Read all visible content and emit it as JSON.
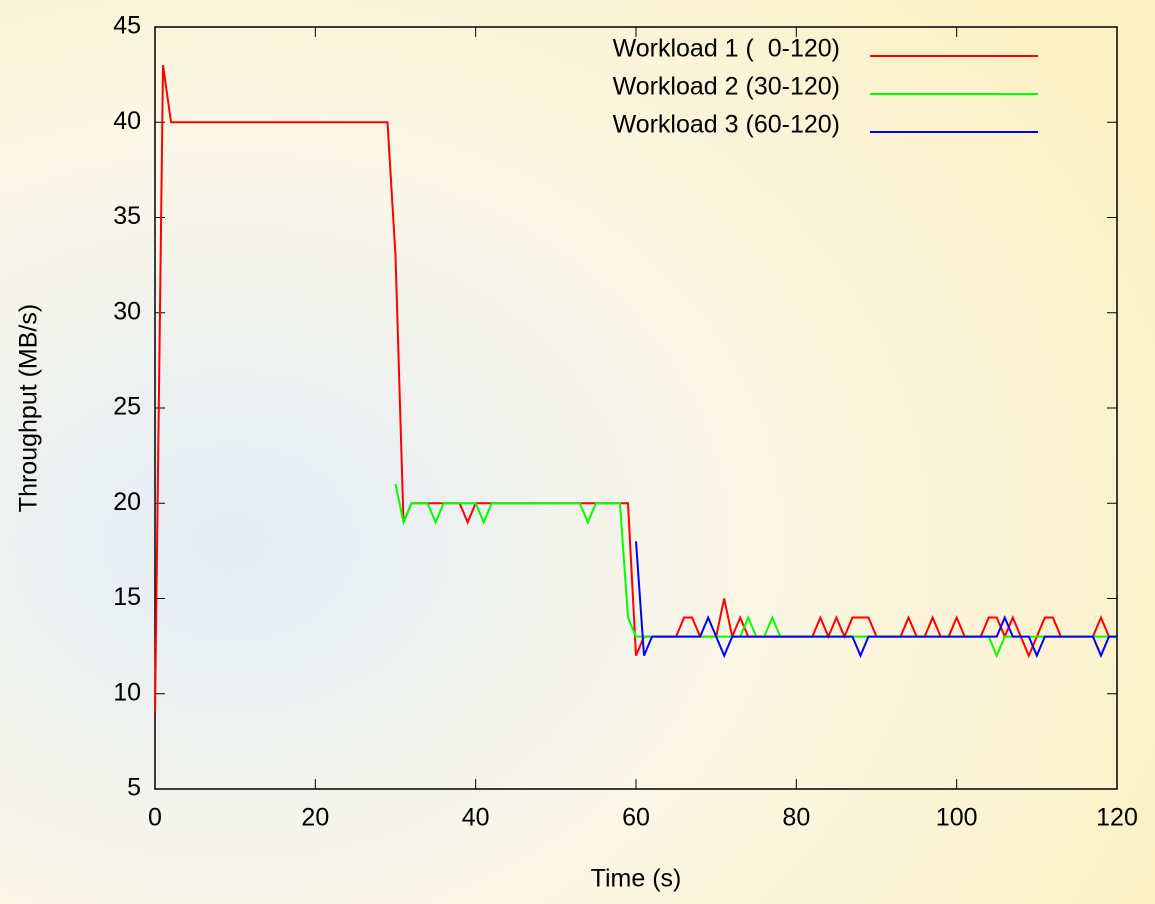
{
  "chart_data": {
    "type": "line",
    "xlabel": "Time (s)",
    "ylabel": "Throughput (MB/s)",
    "x": [
      0,
      1,
      2,
      3,
      4,
      5,
      6,
      7,
      8,
      9,
      10,
      11,
      12,
      13,
      14,
      15,
      16,
      17,
      18,
      19,
      20,
      21,
      22,
      23,
      24,
      25,
      26,
      27,
      28,
      29,
      30,
      31,
      32,
      33,
      34,
      35,
      36,
      37,
      38,
      39,
      40,
      41,
      42,
      43,
      44,
      45,
      46,
      47,
      48,
      49,
      50,
      51,
      52,
      53,
      54,
      55,
      56,
      57,
      58,
      59,
      60,
      61,
      62,
      63,
      64,
      65,
      66,
      67,
      68,
      69,
      70,
      71,
      72,
      73,
      74,
      75,
      76,
      77,
      78,
      79,
      80,
      81,
      82,
      83,
      84,
      85,
      86,
      87,
      88,
      89,
      90,
      91,
      92,
      93,
      94,
      95,
      96,
      97,
      98,
      99,
      100,
      101,
      102,
      103,
      104,
      105,
      106,
      107,
      108,
      109,
      110,
      111,
      112,
      113,
      114,
      115,
      116,
      117,
      118,
      119,
      120
    ],
    "series": [
      {
        "name": "Workload 1 (  0-120)",
        "color": "#ff0000",
        "values": [
          9,
          43,
          40,
          40,
          40,
          40,
          40,
          40,
          40,
          40,
          40,
          40,
          40,
          40,
          40,
          40,
          40,
          40,
          40,
          40,
          40,
          40,
          40,
          40,
          40,
          40,
          40,
          40,
          40,
          40,
          33,
          19,
          20,
          20,
          20,
          20,
          20,
          20,
          20,
          19,
          20,
          20,
          20,
          20,
          20,
          20,
          20,
          20,
          20,
          20,
          20,
          20,
          20,
          20,
          20,
          20,
          20,
          20,
          20,
          20,
          12,
          13,
          13,
          13,
          13,
          13,
          14,
          14,
          13,
          13,
          13,
          15,
          13,
          14,
          13,
          13,
          13,
          13,
          13,
          13,
          13,
          13,
          13,
          14,
          13,
          14,
          13,
          14,
          14,
          14,
          13,
          13,
          13,
          13,
          14,
          13,
          13,
          14,
          13,
          13,
          14,
          13,
          13,
          13,
          14,
          14,
          13,
          14,
          13,
          12,
          13,
          14,
          14,
          13,
          13,
          13,
          13,
          13,
          14,
          13,
          13
        ]
      },
      {
        "name": "Workload 2 (30-120)",
        "color": "#00ff00",
        "values": [
          null,
          null,
          null,
          null,
          null,
          null,
          null,
          null,
          null,
          null,
          null,
          null,
          null,
          null,
          null,
          null,
          null,
          null,
          null,
          null,
          null,
          null,
          null,
          null,
          null,
          null,
          null,
          null,
          null,
          null,
          21,
          19,
          20,
          20,
          20,
          19,
          20,
          20,
          20,
          20,
          20,
          19,
          20,
          20,
          20,
          20,
          20,
          20,
          20,
          20,
          20,
          20,
          20,
          20,
          19,
          20,
          20,
          20,
          20,
          14,
          13,
          13,
          13,
          13,
          13,
          13,
          13,
          13,
          13,
          13,
          13,
          13,
          13,
          13,
          14,
          13,
          13,
          14,
          13,
          13,
          13,
          13,
          13,
          13,
          13,
          13,
          13,
          13,
          13,
          13,
          13,
          13,
          13,
          13,
          13,
          13,
          13,
          13,
          13,
          13,
          13,
          13,
          13,
          13,
          13,
          12,
          13,
          13,
          13,
          13,
          13,
          13,
          13,
          13,
          13,
          13,
          13,
          13,
          13,
          13,
          13
        ]
      },
      {
        "name": "Workload 3 (60-120)",
        "color": "#0000ff",
        "values": [
          null,
          null,
          null,
          null,
          null,
          null,
          null,
          null,
          null,
          null,
          null,
          null,
          null,
          null,
          null,
          null,
          null,
          null,
          null,
          null,
          null,
          null,
          null,
          null,
          null,
          null,
          null,
          null,
          null,
          null,
          null,
          null,
          null,
          null,
          null,
          null,
          null,
          null,
          null,
          null,
          null,
          null,
          null,
          null,
          null,
          null,
          null,
          null,
          null,
          null,
          null,
          null,
          null,
          null,
          null,
          null,
          null,
          null,
          null,
          null,
          18,
          12,
          13,
          13,
          13,
          13,
          13,
          13,
          13,
          14,
          13,
          12,
          13,
          13,
          13,
          13,
          13,
          13,
          13,
          13,
          13,
          13,
          13,
          13,
          13,
          13,
          13,
          13,
          12,
          13,
          13,
          13,
          13,
          13,
          13,
          13,
          13,
          13,
          13,
          13,
          13,
          13,
          13,
          13,
          13,
          13,
          14,
          13,
          13,
          13,
          12,
          13,
          13,
          13,
          13,
          13,
          13,
          13,
          12,
          13,
          13
        ]
      }
    ],
    "xlim": [
      0,
      120
    ],
    "xticks": [
      0,
      20,
      40,
      60,
      80,
      100,
      120
    ],
    "ylim": [
      5,
      45
    ],
    "yticks": [
      5,
      10,
      15,
      20,
      25,
      30,
      35,
      40,
      45
    ],
    "legend": "upper-right"
  }
}
